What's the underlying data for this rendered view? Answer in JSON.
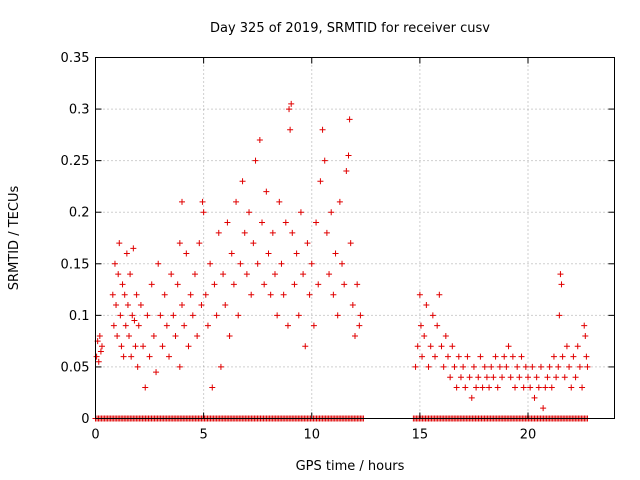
{
  "chart_data": {
    "type": "scatter",
    "title": "Day 325 of 2019, SRMTID for receiver cusv",
    "xlabel": "GPS time / hours",
    "ylabel": "SRMTID / TECUs",
    "xlim": [
      0,
      24
    ],
    "ylim": [
      0,
      0.35
    ],
    "xticks": [
      0,
      5,
      10,
      15,
      20
    ],
    "xtick_labels": [
      "0",
      "5",
      "10",
      "15",
      "20"
    ],
    "yticks": [
      0,
      0.05,
      0.1,
      0.15,
      0.2,
      0.25,
      0.3,
      0.35
    ],
    "ytick_labels": [
      "0",
      "0.05",
      "0.1",
      "0.15",
      "0.2",
      "0.25",
      "0.3",
      "0.35"
    ],
    "grid": true,
    "marker": "+",
    "series": [
      {
        "name": "SRMTID",
        "color": "#e00000",
        "points": [
          [
            0.05,
            0.06
          ],
          [
            0.1,
            0.075
          ],
          [
            0.15,
            0.055
          ],
          [
            0.2,
            0.08
          ],
          [
            0.25,
            0.065
          ],
          [
            0.3,
            0.07
          ],
          [
            0.8,
            0.12
          ],
          [
            0.85,
            0.09
          ],
          [
            0.9,
            0.15
          ],
          [
            0.95,
            0.11
          ],
          [
            1.0,
            0.08
          ],
          [
            1.05,
            0.14
          ],
          [
            1.1,
            0.17
          ],
          [
            1.15,
            0.1
          ],
          [
            1.2,
            0.07
          ],
          [
            1.25,
            0.13
          ],
          [
            1.3,
            0.06
          ],
          [
            1.35,
            0.12
          ],
          [
            1.4,
            0.09
          ],
          [
            1.45,
            0.16
          ],
          [
            1.5,
            0.11
          ],
          [
            1.55,
            0.08
          ],
          [
            1.6,
            0.14
          ],
          [
            1.65,
            0.06
          ],
          [
            1.7,
            0.1
          ],
          [
            1.75,
            0.165
          ],
          [
            1.8,
            0.095
          ],
          [
            1.85,
            0.07
          ],
          [
            1.9,
            0.12
          ],
          [
            1.95,
            0.05
          ],
          [
            2.0,
            0.09
          ],
          [
            2.1,
            0.11
          ],
          [
            2.2,
            0.07
          ],
          [
            2.3,
            0.03
          ],
          [
            2.4,
            0.1
          ],
          [
            2.5,
            0.06
          ],
          [
            2.6,
            0.13
          ],
          [
            2.7,
            0.08
          ],
          [
            2.8,
            0.045
          ],
          [
            2.9,
            0.15
          ],
          [
            3.0,
            0.1
          ],
          [
            3.1,
            0.07
          ],
          [
            3.2,
            0.12
          ],
          [
            3.3,
            0.09
          ],
          [
            3.4,
            0.06
          ],
          [
            3.5,
            0.14
          ],
          [
            3.6,
            0.1
          ],
          [
            3.7,
            0.08
          ],
          [
            3.8,
            0.13
          ],
          [
            3.9,
            0.05
          ],
          [
            4.0,
            0.11
          ],
          [
            4.1,
            0.09
          ],
          [
            4.2,
            0.16
          ],
          [
            4.3,
            0.07
          ],
          [
            4.4,
            0.12
          ],
          [
            4.5,
            0.1
          ],
          [
            4.6,
            0.14
          ],
          [
            4.7,
            0.08
          ],
          [
            4.8,
            0.17
          ],
          [
            4.9,
            0.11
          ],
          [
            4.95,
            0.21
          ],
          [
            4.0,
            0.21
          ],
          [
            3.9,
            0.17
          ],
          [
            5.0,
            0.2
          ],
          [
            5.1,
            0.12
          ],
          [
            5.2,
            0.09
          ],
          [
            5.3,
            0.15
          ],
          [
            5.4,
            0.03
          ],
          [
            5.5,
            0.13
          ],
          [
            5.6,
            0.1
          ],
          [
            5.7,
            0.18
          ],
          [
            5.8,
            0.05
          ],
          [
            5.9,
            0.14
          ],
          [
            6.0,
            0.11
          ],
          [
            6.1,
            0.19
          ],
          [
            6.2,
            0.08
          ],
          [
            6.3,
            0.16
          ],
          [
            6.4,
            0.13
          ],
          [
            6.5,
            0.21
          ],
          [
            6.6,
            0.1
          ],
          [
            6.7,
            0.15
          ],
          [
            6.8,
            0.23
          ],
          [
            6.9,
            0.18
          ],
          [
            7.0,
            0.14
          ],
          [
            7.1,
            0.2
          ],
          [
            7.2,
            0.12
          ],
          [
            7.3,
            0.17
          ],
          [
            7.4,
            0.25
          ],
          [
            7.5,
            0.15
          ],
          [
            7.6,
            0.27
          ],
          [
            7.7,
            0.19
          ],
          [
            7.8,
            0.13
          ],
          [
            7.9,
            0.22
          ],
          [
            8.0,
            0.16
          ],
          [
            8.1,
            0.12
          ],
          [
            8.2,
            0.18
          ],
          [
            8.3,
            0.14
          ],
          [
            8.4,
            0.1
          ],
          [
            8.5,
            0.21
          ],
          [
            8.6,
            0.15
          ],
          [
            8.7,
            0.12
          ],
          [
            8.8,
            0.19
          ],
          [
            8.9,
            0.09
          ],
          [
            8.95,
            0.3
          ],
          [
            9.0,
            0.28
          ],
          [
            9.05,
            0.305
          ],
          [
            9.1,
            0.18
          ],
          [
            9.2,
            0.13
          ],
          [
            9.3,
            0.16
          ],
          [
            9.4,
            0.1
          ],
          [
            9.5,
            0.2
          ],
          [
            9.6,
            0.14
          ],
          [
            9.7,
            0.07
          ],
          [
            9.8,
            0.17
          ],
          [
            9.9,
            0.12
          ],
          [
            10.0,
            0.15
          ],
          [
            10.1,
            0.09
          ],
          [
            10.2,
            0.19
          ],
          [
            10.3,
            0.13
          ],
          [
            10.4,
            0.23
          ],
          [
            10.5,
            0.28
          ],
          [
            10.6,
            0.25
          ],
          [
            10.7,
            0.18
          ],
          [
            10.8,
            0.14
          ],
          [
            10.9,
            0.2
          ],
          [
            11.0,
            0.12
          ],
          [
            11.1,
            0.16
          ],
          [
            11.2,
            0.1
          ],
          [
            11.3,
            0.21
          ],
          [
            11.4,
            0.15
          ],
          [
            11.5,
            0.13
          ],
          [
            11.6,
            0.24
          ],
          [
            11.7,
            0.255
          ],
          [
            11.75,
            0.29
          ],
          [
            11.8,
            0.17
          ],
          [
            11.9,
            0.11
          ],
          [
            12.0,
            0.08
          ],
          [
            12.1,
            0.13
          ],
          [
            12.2,
            0.09
          ],
          [
            12.25,
            0.1
          ],
          [
            14.8,
            0.05
          ],
          [
            14.9,
            0.07
          ],
          [
            15.0,
            0.12
          ],
          [
            15.05,
            0.09
          ],
          [
            15.1,
            0.06
          ],
          [
            15.2,
            0.08
          ],
          [
            15.3,
            0.11
          ],
          [
            15.4,
            0.05
          ],
          [
            15.5,
            0.07
          ],
          [
            15.6,
            0.1
          ],
          [
            15.7,
            0.06
          ],
          [
            15.8,
            0.09
          ],
          [
            15.9,
            0.12
          ],
          [
            16.0,
            0.07
          ],
          [
            16.1,
            0.05
          ],
          [
            16.2,
            0.08
          ],
          [
            16.3,
            0.06
          ],
          [
            16.4,
            0.04
          ],
          [
            16.5,
            0.07
          ],
          [
            16.6,
            0.05
          ],
          [
            16.7,
            0.03
          ],
          [
            16.8,
            0.06
          ],
          [
            16.9,
            0.04
          ],
          [
            17.0,
            0.05
          ],
          [
            17.1,
            0.03
          ],
          [
            17.2,
            0.06
          ],
          [
            17.3,
            0.04
          ],
          [
            17.4,
            0.02
          ],
          [
            17.5,
            0.05
          ],
          [
            17.6,
            0.03
          ],
          [
            17.7,
            0.04
          ],
          [
            17.8,
            0.06
          ],
          [
            17.9,
            0.03
          ],
          [
            18.0,
            0.05
          ],
          [
            18.1,
            0.04
          ],
          [
            18.2,
            0.03
          ],
          [
            18.3,
            0.05
          ],
          [
            18.4,
            0.04
          ],
          [
            18.5,
            0.06
          ],
          [
            18.6,
            0.03
          ],
          [
            18.7,
            0.05
          ],
          [
            18.8,
            0.04
          ],
          [
            18.9,
            0.06
          ],
          [
            19.0,
            0.05
          ],
          [
            19.1,
            0.07
          ],
          [
            19.2,
            0.04
          ],
          [
            19.3,
            0.06
          ],
          [
            19.4,
            0.03
          ],
          [
            19.5,
            0.05
          ],
          [
            19.6,
            0.04
          ],
          [
            19.7,
            0.06
          ],
          [
            19.8,
            0.03
          ],
          [
            19.9,
            0.05
          ],
          [
            20.0,
            0.04
          ],
          [
            20.1,
            0.03
          ],
          [
            20.2,
            0.05
          ],
          [
            20.3,
            0.02
          ],
          [
            20.4,
            0.04
          ],
          [
            20.5,
            0.03
          ],
          [
            20.6,
            0.05
          ],
          [
            20.7,
            0.01
          ],
          [
            20.8,
            0.03
          ],
          [
            20.9,
            0.04
          ],
          [
            21.0,
            0.05
          ],
          [
            21.1,
            0.03
          ],
          [
            21.2,
            0.06
          ],
          [
            21.3,
            0.04
          ],
          [
            21.4,
            0.05
          ],
          [
            21.45,
            0.1
          ],
          [
            21.5,
            0.14
          ],
          [
            21.55,
            0.13
          ],
          [
            21.6,
            0.06
          ],
          [
            21.7,
            0.04
          ],
          [
            21.8,
            0.07
          ],
          [
            21.9,
            0.05
          ],
          [
            22.0,
            0.03
          ],
          [
            22.1,
            0.06
          ],
          [
            22.2,
            0.04
          ],
          [
            22.3,
            0.07
          ],
          [
            22.4,
            0.05
          ],
          [
            22.5,
            0.03
          ],
          [
            22.6,
            0.09
          ],
          [
            22.65,
            0.08
          ],
          [
            22.7,
            0.06
          ],
          [
            22.75,
            0.05
          ]
        ],
        "zero_segments": [
          [
            0.0,
            12.4
          ],
          [
            14.7,
            22.8
          ]
        ]
      }
    ]
  }
}
